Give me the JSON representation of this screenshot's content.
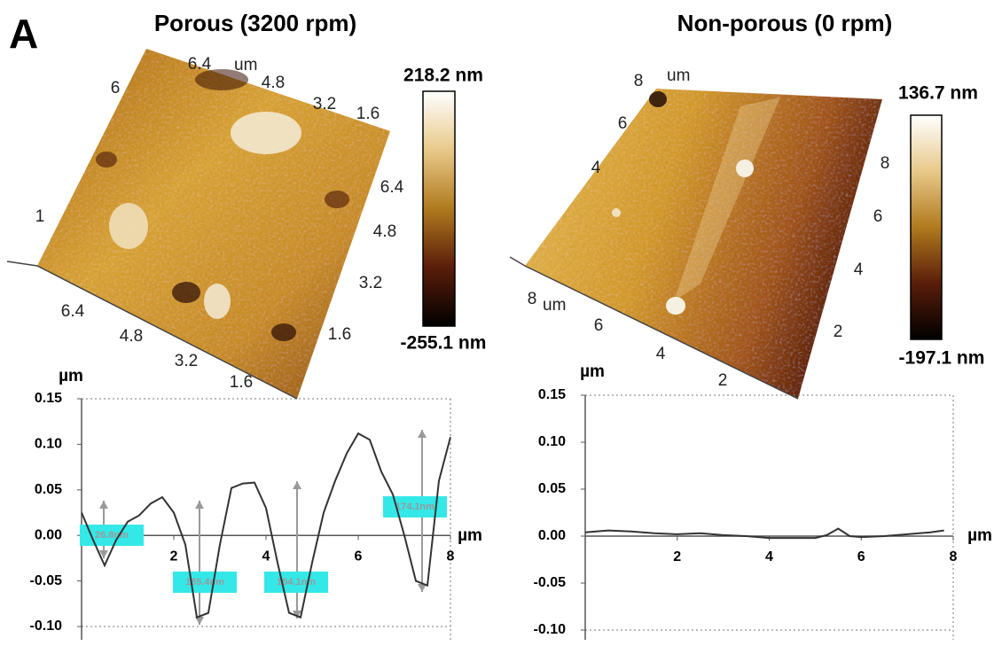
{
  "panel_label": "A",
  "afm_images": [
    {
      "title": "Porous (3200 rpm)",
      "colorbar_max": "218.2 nm",
      "colorbar_min": "-255.1 nm",
      "top_labels": [
        "6.4",
        "4.8",
        "3.2",
        "1.6"
      ],
      "top_unit": "um",
      "left_labels": [
        "6",
        "1"
      ],
      "right_labels": [
        "6.4",
        "4.8",
        "3.2",
        "1.6"
      ],
      "bottom_labels": [
        "6.4",
        "4.8",
        "3.2",
        "1.6"
      ]
    },
    {
      "title": "Non-porous (0 rpm)",
      "colorbar_max": "136.7 nm",
      "colorbar_min": "-197.1 nm",
      "top_labels": [
        "8"
      ],
      "top_unit": "um",
      "left_labels": [
        "6",
        "4"
      ],
      "right_labels": [
        "8",
        "6",
        "4",
        "2"
      ],
      "bottom_labels": [
        "8",
        "6",
        "4",
        "2"
      ],
      "bottom_unit": "um"
    }
  ],
  "chart_data": [
    {
      "type": "line",
      "y_label": "µm",
      "x_label": "µm",
      "x": [
        0,
        0.25,
        0.5,
        0.75,
        1,
        1.25,
        1.5,
        1.75,
        2,
        2.25,
        2.5,
        2.75,
        3,
        3.25,
        3.5,
        3.75,
        4,
        4.25,
        4.5,
        4.75,
        5,
        5.25,
        5.5,
        5.75,
        6,
        6.25,
        6.5,
        6.75,
        7,
        7.25,
        7.5,
        7.75,
        8
      ],
      "series": [
        {
          "color": "#333333",
          "values": [
            0.025,
            -0.005,
            -0.033,
            -0.005,
            0.015,
            0.022,
            0.035,
            0.042,
            0.025,
            -0.01,
            -0.09,
            -0.085,
            -0.01,
            0.052,
            0.057,
            0.058,
            0.03,
            -0.03,
            -0.085,
            -0.09,
            -0.03,
            0.025,
            0.06,
            0.09,
            0.112,
            0.105,
            0.07,
            0.045,
            0.0,
            -0.05,
            -0.055,
            0.06,
            0.108
          ]
        }
      ],
      "xlim": [
        0,
        8
      ],
      "ylim": [
        -0.1,
        0.15
      ],
      "xticks": [
        2,
        4,
        6,
        8
      ],
      "yticks": [
        {
          "value": -0.1,
          "label": "-0.10"
        },
        {
          "value": -0.05,
          "label": "-0.05"
        },
        {
          "value": 0,
          "label": "0.00"
        },
        {
          "value": 0.05,
          "label": "0.05"
        },
        {
          "value": 0.1,
          "label": "0.10"
        },
        0.15
      ],
      "annotations": [
        "26.8nm",
        "185.4nm",
        "154.1nm",
        "174.1nm"
      ]
    },
    {
      "type": "line",
      "y_label": "µm",
      "x_label": "µm",
      "x": [
        0,
        0.5,
        1,
        1.5,
        2,
        2.5,
        3,
        3.5,
        4,
        4.5,
        5,
        5.25,
        5.5,
        5.75,
        6,
        6.5,
        7,
        7.5,
        7.8
      ],
      "series": [
        {
          "color": "#333333",
          "values": [
            0.004,
            0.006,
            0.005,
            0.003,
            0.002,
            0.003,
            0.001,
            0.0,
            -0.002,
            -0.002,
            -0.002,
            0.001,
            0.008,
            0.0,
            -0.001,
            0.0,
            0.002,
            0.004,
            0.006
          ]
        }
      ],
      "xlim": [
        0,
        8
      ],
      "ylim": [
        -0.1,
        0.15
      ],
      "xticks": [
        2,
        4,
        6,
        8
      ],
      "yticks": [
        {
          "value": -0.1,
          "label": "-0.10"
        },
        {
          "value": -0.05,
          "label": "-0.05"
        },
        {
          "value": 0,
          "label": "0.00"
        },
        {
          "value": 0.05,
          "label": "0.05"
        },
        {
          "value": 0.1,
          "label": "0.10"
        },
        0.15
      ]
    }
  ]
}
